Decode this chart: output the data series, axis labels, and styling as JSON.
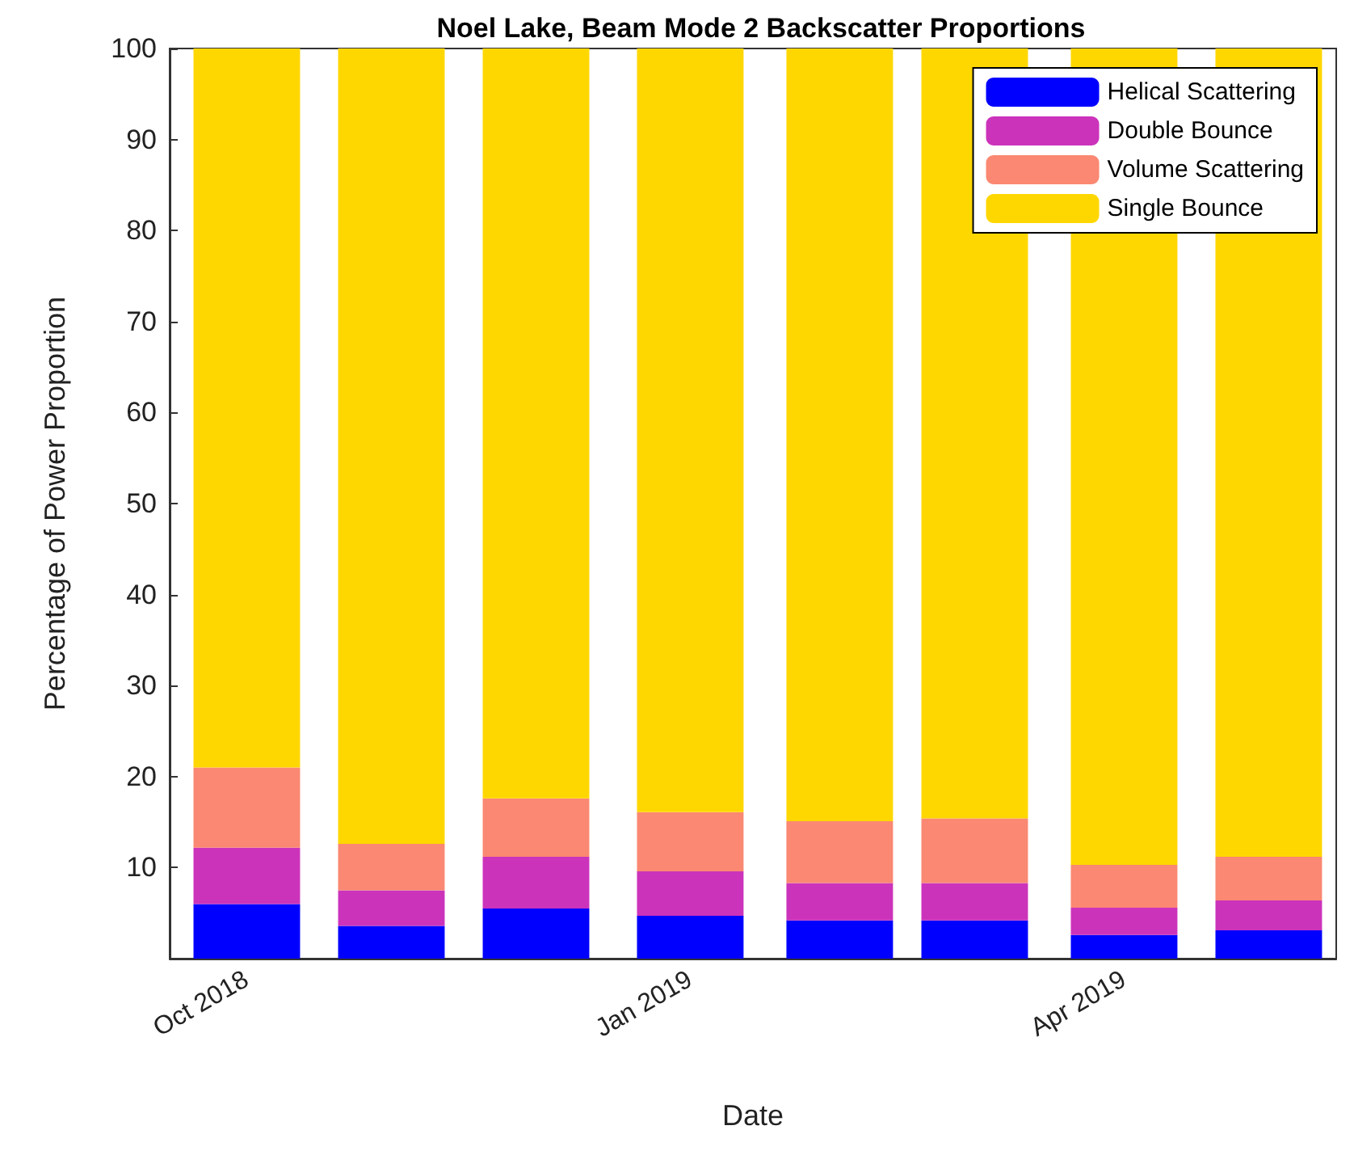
{
  "chart_data": {
    "type": "bar",
    "title": "Noel Lake, Beam Mode 2 Backscatter Proportions",
    "xlabel": "Date",
    "ylabel": "Percentage of Power Proportion",
    "x": [
      "2018-10-01",
      "2018-10-31",
      "2018-11-30",
      "2019-01-01",
      "2019-02-01",
      "2019-03-01",
      "2019-04-01",
      "2019-05-01"
    ],
    "stacked": true,
    "series": [
      {
        "name": "Helical Scattering",
        "color": "#0000ff",
        "values": [
          6.0,
          3.6,
          5.5,
          4.7,
          4.2,
          4.2,
          2.6,
          3.1
        ]
      },
      {
        "name": "Double Bounce",
        "color": "#cc33bb",
        "values": [
          6.2,
          3.9,
          5.7,
          4.9,
          4.1,
          4.1,
          3.0,
          3.3
        ]
      },
      {
        "name": "Volume Scattering",
        "color": "#fa8872",
        "values": [
          8.8,
          5.1,
          6.4,
          6.5,
          6.8,
          7.1,
          4.7,
          4.8
        ]
      },
      {
        "name": "Single Bounce",
        "color": "#ffd700",
        "values": [
          79.0,
          87.4,
          82.4,
          83.9,
          84.9,
          84.6,
          89.7,
          88.8
        ]
      }
    ],
    "xlim": [
      "2018-09-15",
      "2019-05-15"
    ],
    "xticks": [
      {
        "value": "2018-10-01",
        "label": "Oct 2018"
      },
      {
        "value": "2019-01-01",
        "label": "Jan 2019"
      },
      {
        "value": "2019-04-01",
        "label": "Apr 2019"
      }
    ],
    "ylim": [
      0,
      100
    ],
    "yticks": [
      10,
      20,
      30,
      40,
      50,
      60,
      70,
      80,
      90,
      100
    ],
    "grid": false,
    "legend": "top right"
  }
}
